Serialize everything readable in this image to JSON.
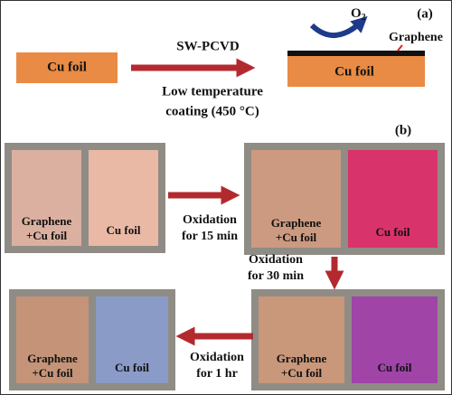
{
  "panel_a": {
    "label": "(a)",
    "source": "Cu foil",
    "process": "SW-PCVD",
    "condition_lines": [
      "Low temperature",
      "coating (450 °C)"
    ],
    "gas": {
      "symbol": "O",
      "subscript": "2"
    },
    "coating": "Graphene",
    "product": "Cu foil"
  },
  "panel_b": {
    "label": "(b)",
    "samples": [
      {
        "graphene_lines": [
          "Graphene",
          "+Cu foil"
        ],
        "bare": "Cu foil"
      },
      {
        "graphene_lines": [
          "Graphene",
          "+Cu foil"
        ],
        "bare": "Cu foil"
      },
      {
        "graphene_lines": [
          "Graphene",
          "+Cu foil"
        ],
        "bare": "Cu foil"
      },
      {
        "graphene_lines": [
          "Graphene",
          "+Cu foil"
        ],
        "bare": "Cu foil"
      }
    ],
    "steps": [
      [
        "Oxidation",
        "for 15 min"
      ],
      [
        "Oxidation",
        "for 30 min"
      ],
      [
        "Oxidation",
        "for 1 hr"
      ]
    ]
  }
}
